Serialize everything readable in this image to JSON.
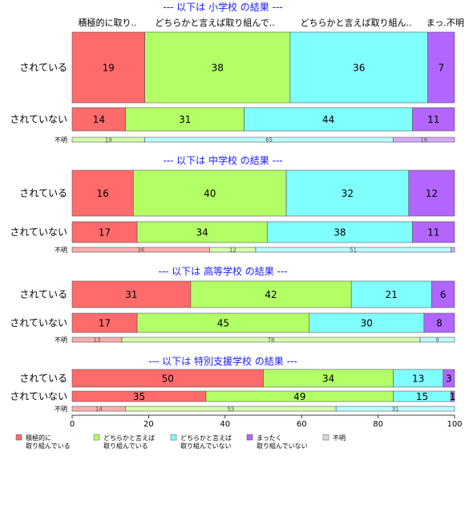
{
  "chart_data": {
    "type": "bar",
    "orientation": "horizontal",
    "stacked": "percent",
    "xlim": [
      0,
      100
    ],
    "x_ticks": [
      "0",
      "20",
      "40",
      "60",
      "80",
      "100"
    ],
    "category_labels": [
      "積極的に取り..",
      "どちらかと言えば取り組んで..",
      "どちらかと言えば取り組ん..",
      "まっ..",
      "不明"
    ],
    "legend": {
      "placement": "bottom",
      "entries": [
        {
          "label_lines": [
            "積極的に",
            "取り組んでいる"
          ],
          "color": "#ff6b6b"
        },
        {
          "label_lines": [
            "どちらかと言えば",
            "取り組んでいる"
          ],
          "color": "#b3ff66"
        },
        {
          "label_lines": [
            "どちらかと言えば",
            "取り組んでいない"
          ],
          "color": "#80ffff"
        },
        {
          "label_lines": [
            "まったく",
            "取り組んでいない"
          ],
          "color": "#b266ff"
        },
        {
          "label_lines": [
            "不明"
          ],
          "color": "#d9d9d9"
        }
      ]
    },
    "panels": [
      {
        "title": "--- 以下は 小学校 の結果 ---",
        "rows": [
          {
            "label": "されている",
            "values": [
              19,
              38,
              36,
              7,
              0
            ],
            "labels": [
              "19",
              "38",
              "36",
              "7",
              ""
            ]
          },
          {
            "label": "されていない",
            "values": [
              14,
              31,
              44,
              11,
              0
            ],
            "labels": [
              "14",
              "31",
              "44",
              "11",
              ""
            ]
          },
          {
            "label": "不明",
            "values": [
              0,
              19,
              65,
              16,
              0
            ],
            "labels": [
              "",
              "19",
              "65",
              "16",
              ""
            ]
          }
        ]
      },
      {
        "title": "--- 以下は 中学校 の結果 ---",
        "rows": [
          {
            "label": "されている",
            "values": [
              16,
              40,
              32,
              12,
              0
            ],
            "labels": [
              "16",
              "40",
              "32",
              "12",
              ""
            ]
          },
          {
            "label": "されていない",
            "values": [
              17,
              34,
              38,
              11,
              0
            ],
            "labels": [
              "17",
              "34",
              "38",
              "11",
              ""
            ]
          },
          {
            "label": "不明",
            "values": [
              36,
              12,
              51,
              1,
              0
            ],
            "labels": [
              "36",
              "12",
              "51",
              "",
              ""
            ]
          }
        ]
      },
      {
        "title": "--- 以下は 高等学校 の結果 ---",
        "rows": [
          {
            "label": "されている",
            "values": [
              31,
              42,
              21,
              6,
              0
            ],
            "labels": [
              "31",
              "42",
              "21",
              "6",
              ""
            ]
          },
          {
            "label": "されていない",
            "values": [
              17,
              45,
              30,
              8,
              0
            ],
            "labels": [
              "17",
              "45",
              "30",
              "8",
              ""
            ]
          },
          {
            "label": "不明",
            "values": [
              13,
              78,
              9,
              0,
              0
            ],
            "labels": [
              "13",
              "78",
              "9",
              "",
              ""
            ]
          }
        ]
      },
      {
        "title": "--- 以下は 特別支援学校 の結果 ---",
        "rows": [
          {
            "label": "されている",
            "values": [
              50,
              34,
              13,
              3,
              0
            ],
            "labels": [
              "50",
              "34",
              "13",
              "3",
              ""
            ]
          },
          {
            "label": "されていない",
            "values": [
              35,
              49,
              15,
              1,
              0
            ],
            "labels": [
              "35",
              "49",
              "15",
              "1",
              ""
            ]
          },
          {
            "label": "不明",
            "values": [
              14,
              55,
              31,
              0,
              0
            ],
            "labels": [
              "14",
              "55",
              "31",
              "",
              ""
            ]
          }
        ]
      }
    ]
  }
}
